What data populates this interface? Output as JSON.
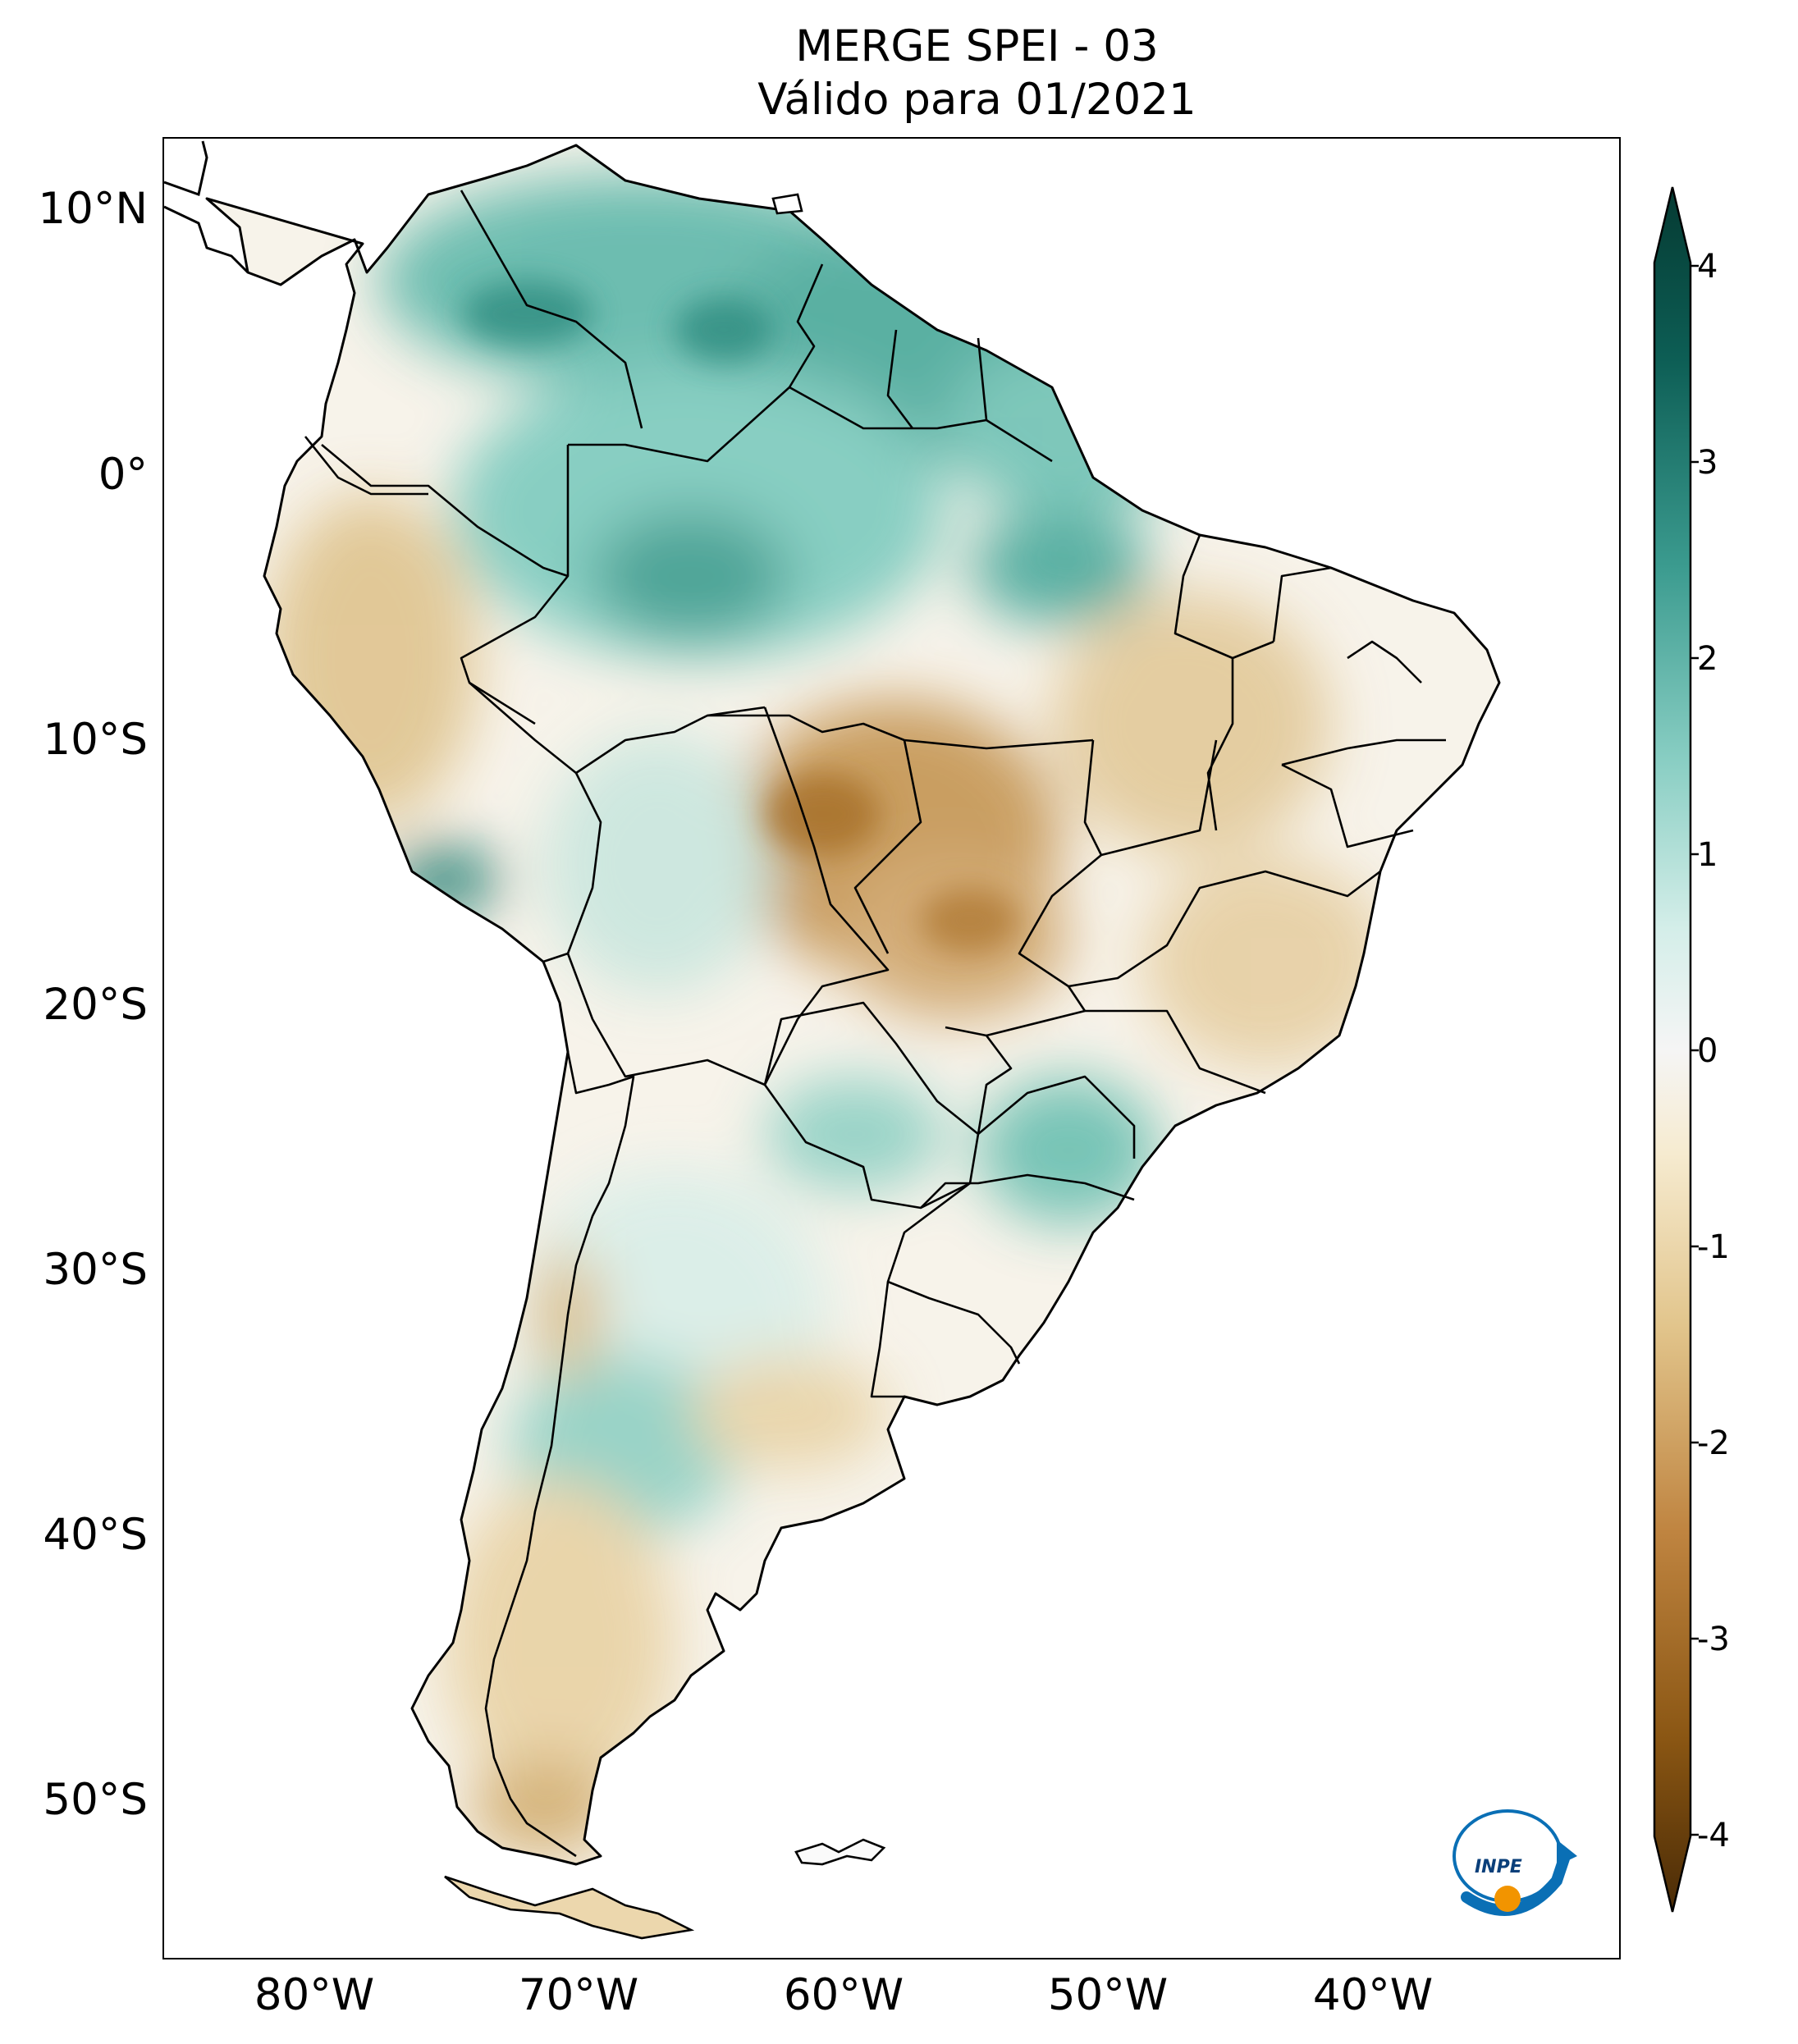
{
  "title": {
    "line1": "MERGE   SPEI - 03",
    "line2": "Válido para 01/2021"
  },
  "map": {
    "region": "South America",
    "lat_ticks": [
      "10°N",
      "0°",
      "10°S",
      "20°S",
      "30°S",
      "40°S",
      "50°S"
    ],
    "lon_ticks": [
      "80°W",
      "70°W",
      "60°W",
      "50°W",
      "40°W"
    ]
  },
  "colorbar": {
    "tick_labels": [
      "4",
      "3",
      "2",
      "1",
      "0",
      "-1",
      "-2",
      "-3",
      "-4"
    ],
    "min": -4,
    "max": 4,
    "colors_low_to_high": [
      "#4a2b06",
      "#8a5613",
      "#bf8440",
      "#e2c58c",
      "#f6ebd0",
      "#f5f5f5",
      "#d4eee9",
      "#87cdc2",
      "#3b9b8f",
      "#0d5e55",
      "#053a32"
    ]
  },
  "logo": {
    "text": "INPE"
  }
}
